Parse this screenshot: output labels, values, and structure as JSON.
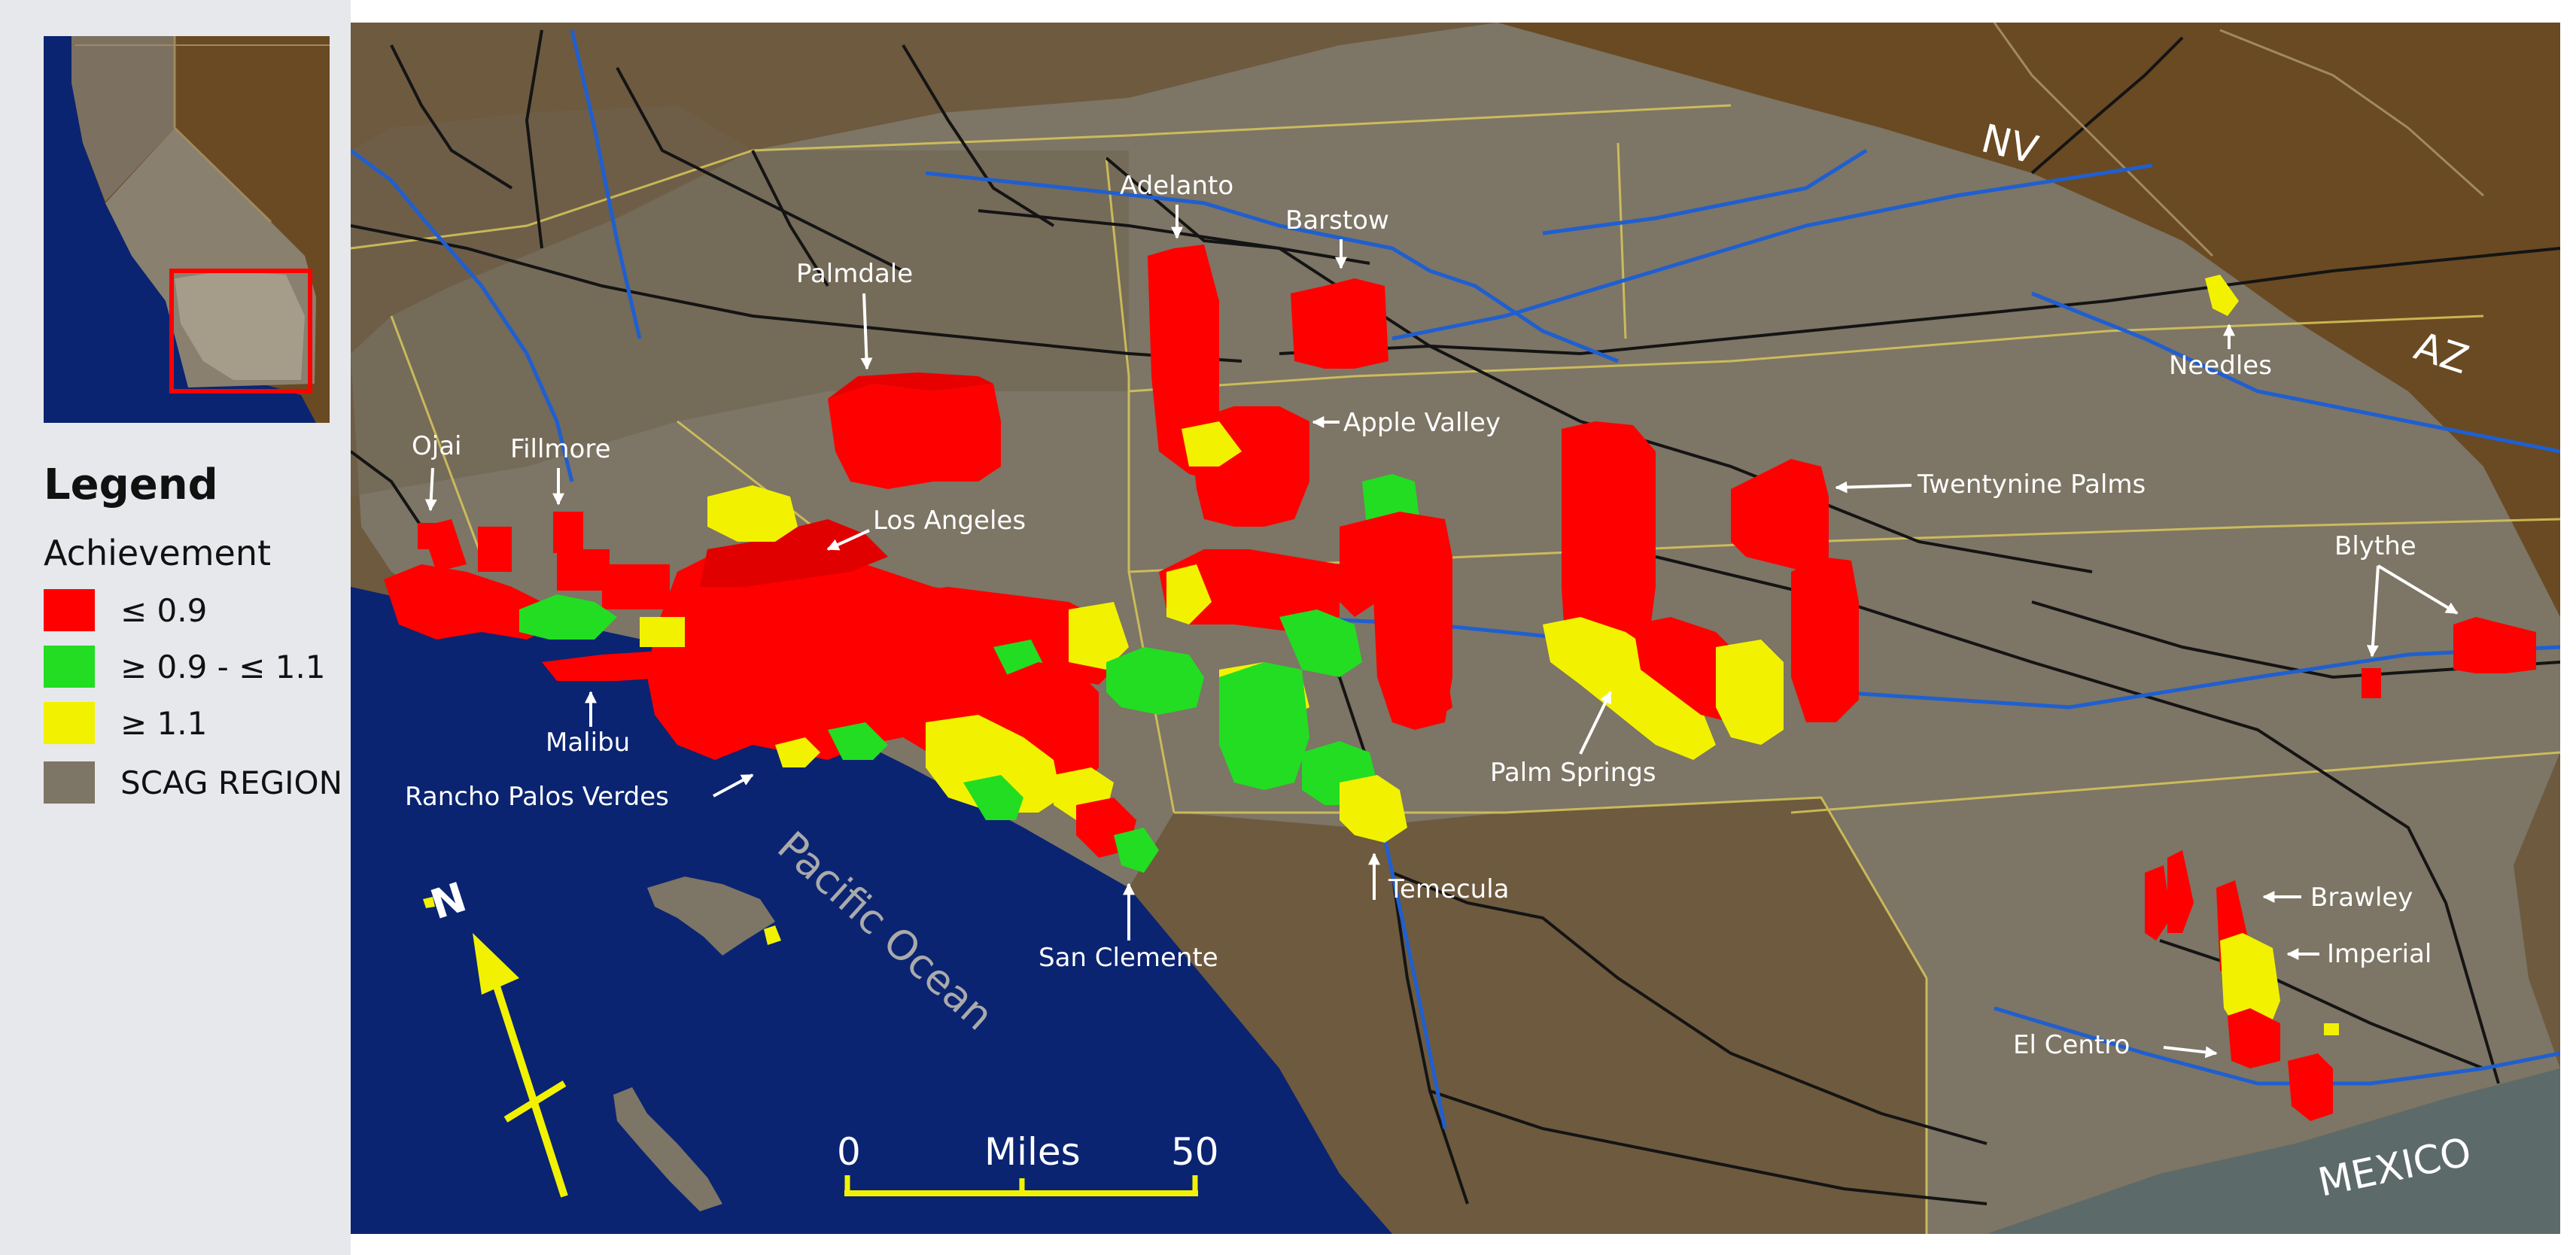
{
  "legend": {
    "title": "Legend",
    "subtitle": "Achievement",
    "items": [
      {
        "label": "≤ 0.9",
        "color": "#ff0000"
      },
      {
        "label": "≥ 0.9 -  ≤ 1.1",
        "color": "#22dd22"
      },
      {
        "label": "≥ 1.1",
        "color": "#f2f200"
      },
      {
        "label": "SCAG REGION",
        "color": "#7d7565"
      }
    ]
  },
  "places": {
    "adelanto": "Adelanto",
    "barstow": "Barstow",
    "palmdale": "Palmdale",
    "needles": "Needles",
    "apple_valley": "Apple  Valley",
    "ojai": "Ojai",
    "fillmore": "Fillmore",
    "los_angeles": "Los  Angeles",
    "twentynine_palms": "Twentynine  Palms",
    "blythe": "Blythe",
    "malibu": "Malibu",
    "rancho_palos_verdes": "Rancho  Palos  Verdes",
    "palm_springs": "Palm  Springs",
    "temecula": "Temecula",
    "san_clemente": "San  Clemente",
    "brawley": "Brawley",
    "imperial": "Imperial",
    "el_centro": "El  Centro"
  },
  "regions": {
    "nv": "NV",
    "az": "AZ",
    "mexico": "MEXICO",
    "ocean": "Pacific Ocean"
  },
  "compass": {
    "north": "N"
  },
  "scale": {
    "start": "0",
    "unit": "Miles",
    "end": "50"
  },
  "colors": {
    "ocean": "#0a2472",
    "scag_region": "#7d7565",
    "outside_state": "#6a4a22",
    "other_county": "#6e5a3e",
    "mexico": "#5d6a6a",
    "rivers": "#1f5fd0",
    "roads": "#141414",
    "boundaries": "#d8c85a",
    "compass": "#f2f200"
  }
}
